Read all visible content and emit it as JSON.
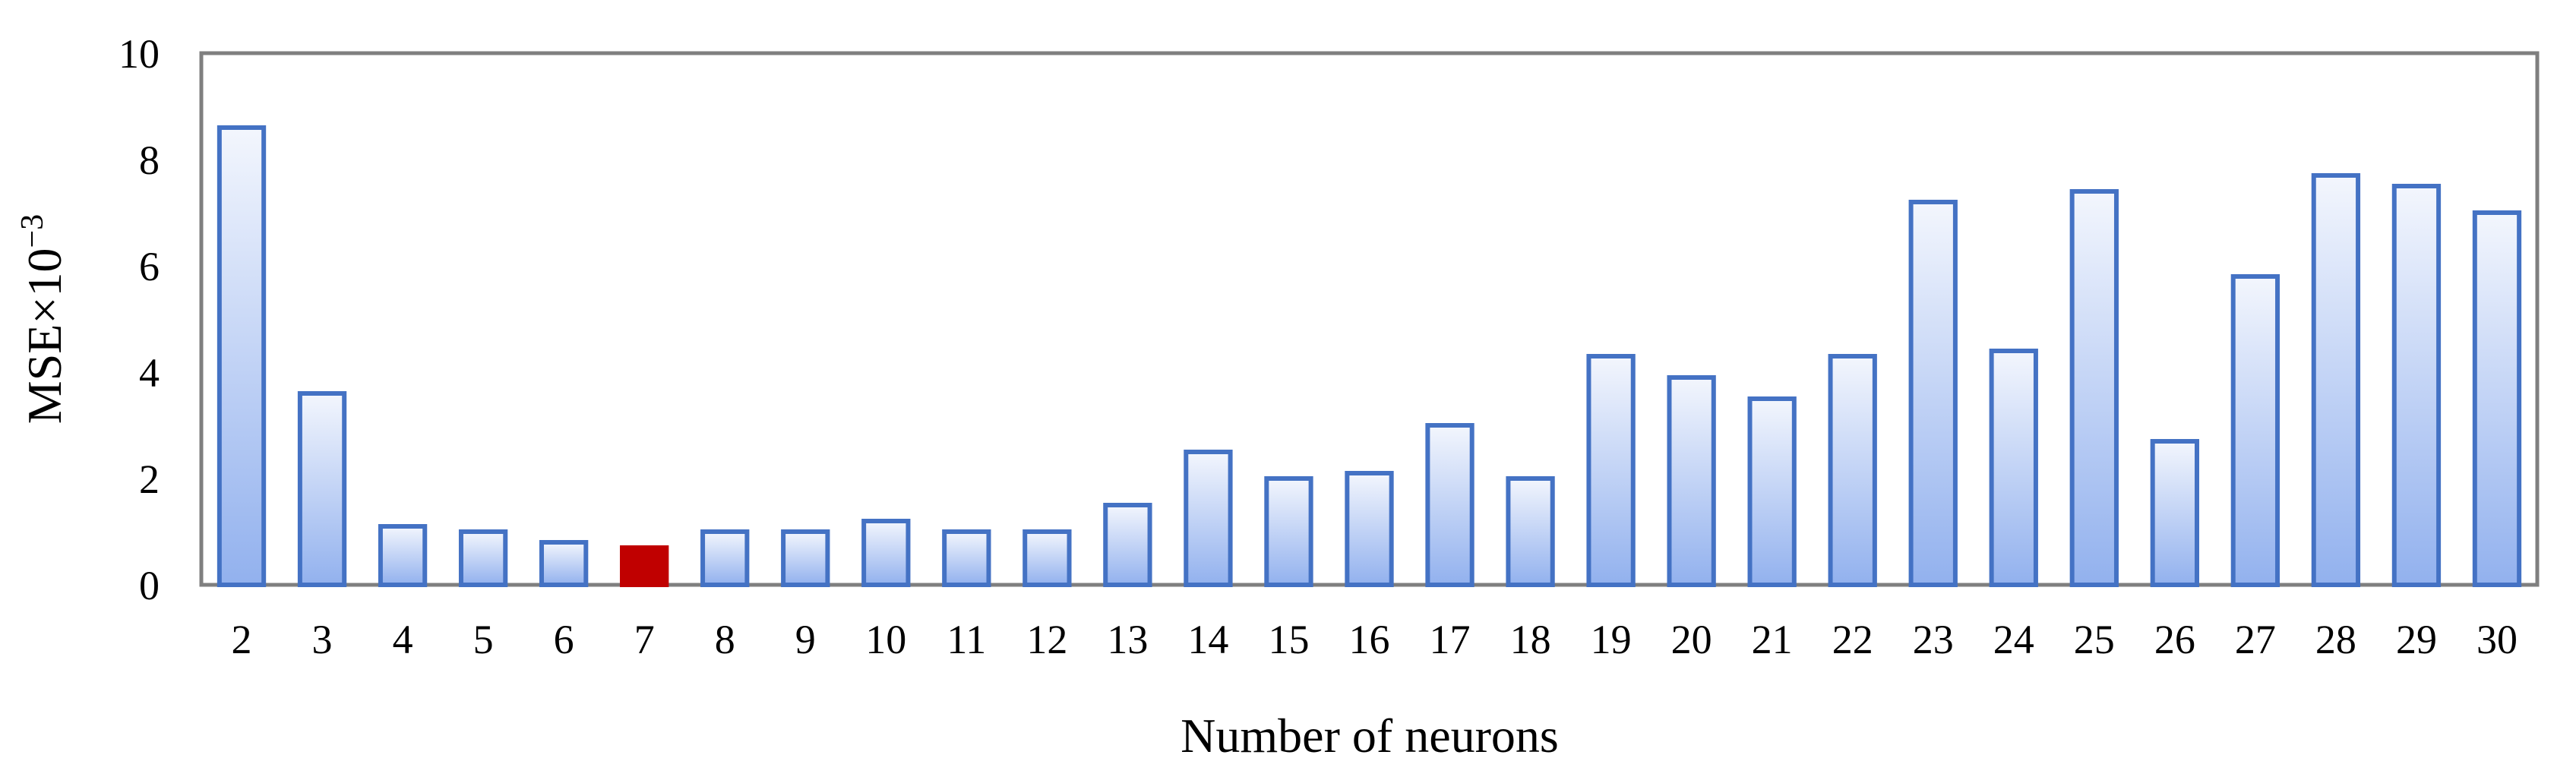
{
  "chart_data": {
    "type": "bar",
    "title": "",
    "xlabel": "Number of neurons",
    "ylabel_main": "MSE×10",
    "ylabel_exp": "−3",
    "ylim": [
      0,
      10
    ],
    "yticks": [
      0,
      2,
      4,
      6,
      8,
      10
    ],
    "categories": [
      "2",
      "3",
      "4",
      "5",
      "6",
      "7",
      "8",
      "9",
      "10",
      "11",
      "12",
      "13",
      "14",
      "15",
      "16",
      "17",
      "18",
      "19",
      "20",
      "21",
      "22",
      "23",
      "24",
      "25",
      "26",
      "27",
      "28",
      "29",
      "30"
    ],
    "values": [
      8.6,
      3.6,
      1.1,
      1.0,
      0.8,
      0.7,
      1.0,
      1.0,
      1.2,
      1.0,
      1.0,
      1.5,
      2.5,
      2.0,
      2.1,
      3.0,
      2.0,
      4.3,
      3.9,
      3.5,
      4.3,
      7.2,
      4.4,
      7.4,
      2.7,
      5.8,
      7.7,
      7.5,
      7.0
    ],
    "highlight_category": "7",
    "grid": false,
    "legend": "none",
    "colors": {
      "bar_fill_top": "#f3f6fd",
      "bar_fill_bottom": "#92b1ee",
      "bar_stroke": "#4472c4",
      "highlight": "#c00000",
      "frame": "#7f7f7f"
    }
  }
}
